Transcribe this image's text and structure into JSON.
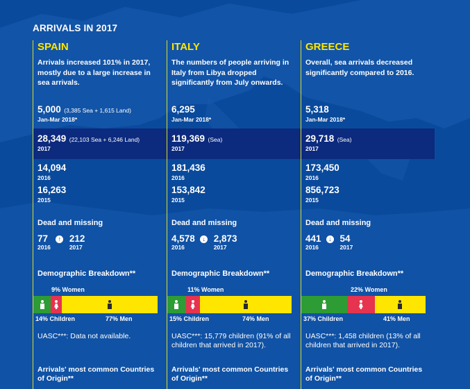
{
  "header": {
    "title": "ARRIVALS IN 2017"
  },
  "columns": [
    {
      "name": "SPAIN",
      "description": "Arrivals increased 101% in 2017, mostly due to a large increase in sea arrivals.",
      "stats": [
        {
          "value": "5,000",
          "detail": "(3,385 Sea + 1,615 Land)",
          "period": "Jan-Mar 2018*"
        },
        {
          "value": "28,349",
          "detail": "(22,103 Sea + 6,246 Land)",
          "period": "2017"
        },
        {
          "value": "14,094",
          "detail": "",
          "period": "2016"
        },
        {
          "value": "16,263",
          "detail": "",
          "period": "2015"
        }
      ],
      "dead_missing": {
        "label": "Dead and missing",
        "from_value": "77",
        "from_year": "2016",
        "to_value": "212",
        "to_year": "2017",
        "direction": "up"
      },
      "demographic": {
        "label": "Demographic Breakdown**",
        "children_pct": 14,
        "women_pct": 9,
        "men_pct": 77,
        "children_label": "14% Children",
        "women_label": "9% Women",
        "men_label": "77% Men"
      },
      "uasc": "UASC***: Data not available.",
      "origin_label": "Arrivals' most common Countries of Origin**"
    },
    {
      "name": "ITALY",
      "description": "The numbers of people arriving in Italy from Libya dropped significantly from July onwards.",
      "stats": [
        {
          "value": "6,295",
          "detail": "",
          "period": "Jan-Mar 2018*"
        },
        {
          "value": "119,369",
          "detail": "(Sea)",
          "period": "2017"
        },
        {
          "value": "181,436",
          "detail": "",
          "period": "2016"
        },
        {
          "value": "153,842",
          "detail": "",
          "period": "2015"
        }
      ],
      "dead_missing": {
        "label": "Dead and missing",
        "from_value": "4,578",
        "from_year": "2016",
        "to_value": "2,873",
        "to_year": "2017",
        "direction": "down"
      },
      "demographic": {
        "label": "Demographic Breakdown**",
        "children_pct": 15,
        "women_pct": 11,
        "men_pct": 74,
        "children_label": "15% Children",
        "women_label": "11% Women",
        "men_label": "74% Men"
      },
      "uasc": "UASC***: 15,779 children  (91% of all children that arrived in 2017).",
      "origin_label": "Arrivals' most common Countries of Origin**"
    },
    {
      "name": "GREECE",
      "description": "Overall, sea arrivals decreased significantly compared to 2016.",
      "stats": [
        {
          "value": "5,318",
          "detail": "",
          "period": "Jan-Mar 2018*"
        },
        {
          "value": "29,718",
          "detail": "(Sea)",
          "period": "2017"
        },
        {
          "value": "173,450",
          "detail": "",
          "period": "2016"
        },
        {
          "value": "856,723",
          "detail": "",
          "period": "2015"
        }
      ],
      "dead_missing": {
        "label": "Dead and missing",
        "from_value": "441",
        "from_year": "2016",
        "to_value": "54",
        "to_year": "2017",
        "direction": "down"
      },
      "demographic": {
        "label": "Demographic Breakdown**",
        "children_pct": 37,
        "women_pct": 22,
        "men_pct": 41,
        "children_label": "37% Children",
        "women_label": "22% Women",
        "men_label": "41% Men"
      },
      "uasc": "UASC***: 1,458 children (13% of all children that arrived in 2017).",
      "origin_label": "Arrivals' most common Countries of Origin**"
    }
  ],
  "colors": {
    "background": "#0a4a9c",
    "accent_yellow": "#ffe600",
    "children_green": "#2e9c34",
    "women_red": "#e6334f",
    "highlight_band": "#0c2a7e"
  }
}
